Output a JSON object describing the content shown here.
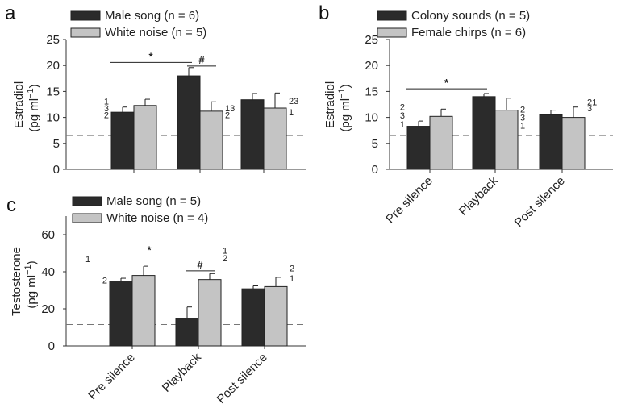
{
  "chart_data": [
    {
      "panel": "a",
      "type": "bar",
      "categories": [
        "Pre silence",
        "Playback",
        "Post silence"
      ],
      "show_category_labels": false,
      "series": [
        {
          "name": "Male song (n = 6)",
          "color": "#2b2b2b",
          "values": [
            11.0,
            18.0,
            13.4
          ],
          "errors": [
            1.0,
            1.6,
            1.2
          ]
        },
        {
          "name": "White noise (n = 5)",
          "color": "#c4c4c4",
          "values": [
            12.3,
            11.2,
            11.8
          ],
          "errors": [
            1.2,
            1.8,
            2.9
          ]
        }
      ],
      "ylabel": "Estradiol",
      "ylabel_unit": "(pg ml",
      "ylabel_exp": "−1",
      "ylabel_close": ")",
      "ylim": [
        0,
        25
      ],
      "yticks": [
        "0",
        "5",
        "10",
        "15",
        "20",
        "25"
      ],
      "baseline": 6.5,
      "annotations": [
        {
          "text": "1",
          "cat": 0,
          "y": 13.1,
          "side": "left"
        },
        {
          "text": "3",
          "cat": 0,
          "y": 11.8,
          "side": "left"
        },
        {
          "text": "2",
          "cat": 0,
          "y": 10.5,
          "side": "left"
        },
        {
          "text": "13",
          "cat": 1,
          "y": 11.8,
          "side": "right"
        },
        {
          "text": "2",
          "cat": 1,
          "y": 10.5,
          "side": "right"
        },
        {
          "text": "23",
          "cat": 2,
          "y": 13.2,
          "side": "right"
        },
        {
          "text": "1",
          "cat": 2,
          "y": 11.0,
          "side": "right"
        }
      ],
      "significance": [
        {
          "symbol": "*",
          "from": [
            0,
            0
          ],
          "to": [
            1,
            0
          ],
          "y": 20.6
        },
        {
          "symbol": "#",
          "from": [
            1,
            0
          ],
          "to": [
            1,
            1
          ],
          "y": 19.9
        }
      ]
    },
    {
      "panel": "b",
      "type": "bar",
      "categories": [
        "Pre silence",
        "Playback",
        "Post silence"
      ],
      "show_category_labels": true,
      "series": [
        {
          "name": "Colony sounds (n = 5)",
          "color": "#2b2b2b",
          "values": [
            8.3,
            14.0,
            10.5
          ],
          "errors": [
            1.0,
            0.6,
            0.9
          ]
        },
        {
          "name": "Female chirps (n = 6)",
          "color": "#c4c4c4",
          "values": [
            10.2,
            11.4,
            10.0
          ],
          "errors": [
            1.4,
            2.3,
            2.0
          ]
        }
      ],
      "ylabel": "Estradiol",
      "ylabel_unit": "(pg ml",
      "ylabel_exp": "−1",
      "ylabel_close": ")",
      "ylim": [
        0,
        25
      ],
      "yticks": [
        "0",
        "5",
        "10",
        "15",
        "20",
        "25"
      ],
      "baseline": 6.5,
      "annotations": [
        {
          "text": "2",
          "cat": 0,
          "y": 12.0,
          "side": "left"
        },
        {
          "text": "3",
          "cat": 0,
          "y": 10.4,
          "side": "left"
        },
        {
          "text": "1",
          "cat": 0,
          "y": 8.7,
          "side": "left"
        },
        {
          "text": "2",
          "cat": 1,
          "y": 11.6,
          "side": "right"
        },
        {
          "text": "3",
          "cat": 1,
          "y": 10.0,
          "side": "right"
        },
        {
          "text": "1",
          "cat": 1,
          "y": 8.5,
          "side": "right"
        },
        {
          "text": "21",
          "cat": 2,
          "y": 13.0,
          "side": "right"
        },
        {
          "text": "3",
          "cat": 2,
          "y": 11.8,
          "side": "right"
        }
      ],
      "significance": [
        {
          "symbol": "*",
          "from": [
            0,
            0
          ],
          "to": [
            1,
            0
          ],
          "y": 15.5
        }
      ]
    },
    {
      "panel": "c",
      "type": "bar",
      "categories": [
        "Pre silence",
        "Playback",
        "Post silence"
      ],
      "show_category_labels": true,
      "series": [
        {
          "name": "Male song (n = 5)",
          "color": "#2b2b2b",
          "values": [
            35.0,
            15.0,
            30.8
          ],
          "errors": [
            1.5,
            6.0,
            1.6
          ]
        },
        {
          "name": "White noise (n = 4)",
          "color": "#c4c4c4",
          "values": [
            38.0,
            35.8,
            32.0
          ],
          "errors": [
            5.0,
            3.2,
            5.0
          ]
        }
      ],
      "ylabel": "Testosterone",
      "ylabel_unit": "(pg ml",
      "ylabel_exp": "−1",
      "ylabel_close": ")",
      "ylim": [
        0,
        70
      ],
      "yticks": [
        "0",
        "20",
        "40",
        "60"
      ],
      "baseline": 11.5,
      "annotations": [
        {
          "text": "1",
          "cat": 0,
          "y": 47.0,
          "side": "far-left"
        },
        {
          "text": "2",
          "cat": 0,
          "y": 35.5,
          "side": "left"
        },
        {
          "text": "1",
          "cat": 1,
          "y": 51.5,
          "side": "right-high"
        },
        {
          "text": "2",
          "cat": 1,
          "y": 47.5,
          "side": "right-high"
        },
        {
          "text": "2",
          "cat": 2,
          "y": 42.0,
          "side": "right"
        },
        {
          "text": "1",
          "cat": 2,
          "y": 36.5,
          "side": "right"
        }
      ],
      "significance": [
        {
          "symbol": "*",
          "from": [
            0,
            0
          ],
          "to": [
            1,
            0
          ],
          "y": 48.5
        },
        {
          "symbol": "#",
          "from": [
            1,
            0
          ],
          "to": [
            1,
            1
          ],
          "y": 40.5
        }
      ]
    }
  ]
}
